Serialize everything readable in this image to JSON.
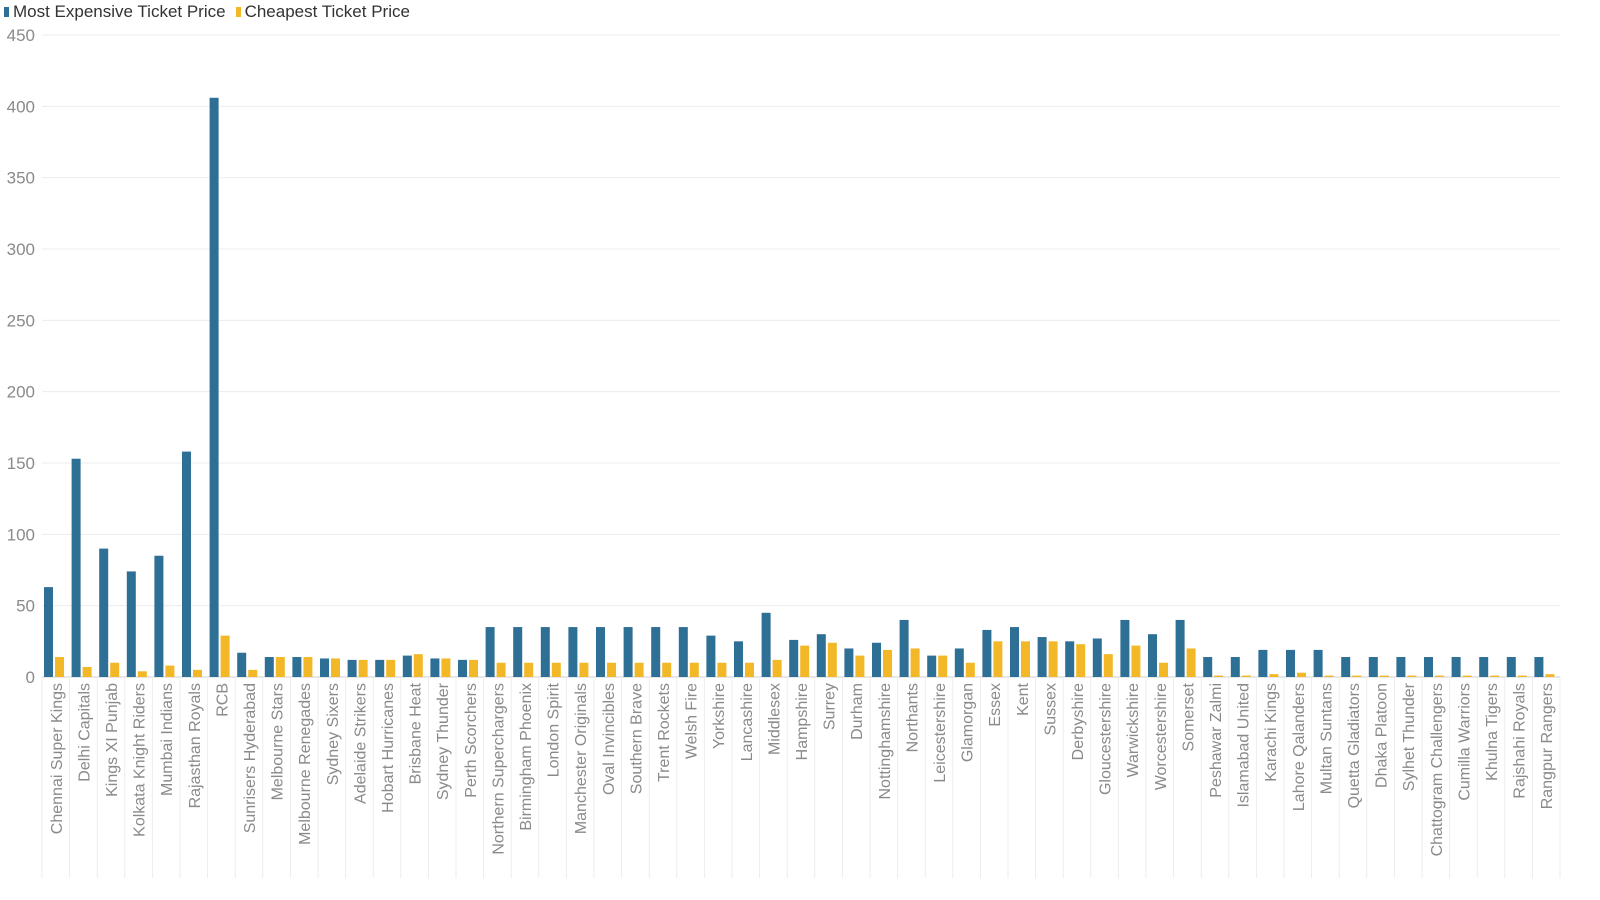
{
  "chart_data": {
    "type": "bar",
    "colors": {
      "most_expensive": "#2e6f96",
      "cheapest": "#f2b827"
    },
    "ylim": [
      0,
      450
    ],
    "yticks": [
      0,
      50,
      100,
      150,
      200,
      250,
      300,
      350,
      400,
      450
    ],
    "legend_position": "top-left",
    "grid": true,
    "categories": [
      "Chennai Super Kings",
      "Delhi Capitals",
      "Kings XI Punjab",
      "Kolkata Knight Riders",
      "Mumbai Indians",
      "Rajasthan Royals",
      "RCB",
      "Sunrisers Hyderabad",
      "Melbourne Stars",
      "Melbourne Renegades",
      "Sydney Sixers",
      "Adelaide Strikers",
      "Hobart Hurricanes",
      "Brisbane Heat",
      "Sydney Thunder",
      "Perth Scorchers",
      "Northern Superchargers",
      "Birmingham Phoenix",
      "London Spirit",
      "Manchester Originals",
      "Oval Invincibles",
      "Southern Brave",
      "Trent Rockets",
      "Welsh Fire",
      "Yorkshire",
      "Lancashire",
      "Middlesex",
      "Hampshire",
      "Surrey",
      "Durham",
      "Nottinghamshire",
      "Northants",
      "Leicestershire",
      "Glamorgan",
      "Essex",
      "Kent",
      "Sussex",
      "Derbyshire",
      "Gloucestershire",
      "Warwickshire",
      "Worcestershire",
      "Somerset",
      "Peshawar Zalmi",
      "Islamabad United",
      "Karachi Kings",
      "Lahore Qalanders",
      "Multan Suntans",
      "Quetta Gladiators",
      "Dhaka Platoon",
      "Sylhet Thunder",
      "Chattogram Challengers",
      "Cumilla Warriors",
      "Khulna Tigers",
      "Rajshahi Royals",
      "Rangpur Rangers"
    ],
    "series": [
      {
        "name": "Most Expensive Ticket Price",
        "values": [
          63,
          153,
          90,
          74,
          85,
          158,
          406,
          17,
          14,
          14,
          13,
          12,
          12,
          15,
          13,
          12,
          35,
          35,
          35,
          35,
          35,
          35,
          35,
          35,
          29,
          25,
          45,
          26,
          30,
          20,
          24,
          40,
          15,
          20,
          33,
          35,
          28,
          25,
          27,
          40,
          30,
          40,
          14,
          14,
          19,
          19,
          19,
          14,
          14,
          14,
          14,
          14,
          14,
          14,
          14
        ]
      },
      {
        "name": "Cheapest Ticket Price",
        "values": [
          14,
          7,
          10,
          4,
          8,
          5,
          29,
          5,
          14,
          14,
          13,
          12,
          12,
          16,
          13,
          12,
          10,
          10,
          10,
          10,
          10,
          10,
          10,
          10,
          10,
          10,
          12,
          22,
          24,
          15,
          19,
          20,
          15,
          10,
          25,
          25,
          25,
          23,
          16,
          22,
          10,
          20,
          1,
          1,
          2,
          3,
          1,
          1,
          1,
          1,
          1,
          1,
          1,
          1,
          2
        ]
      }
    ]
  }
}
